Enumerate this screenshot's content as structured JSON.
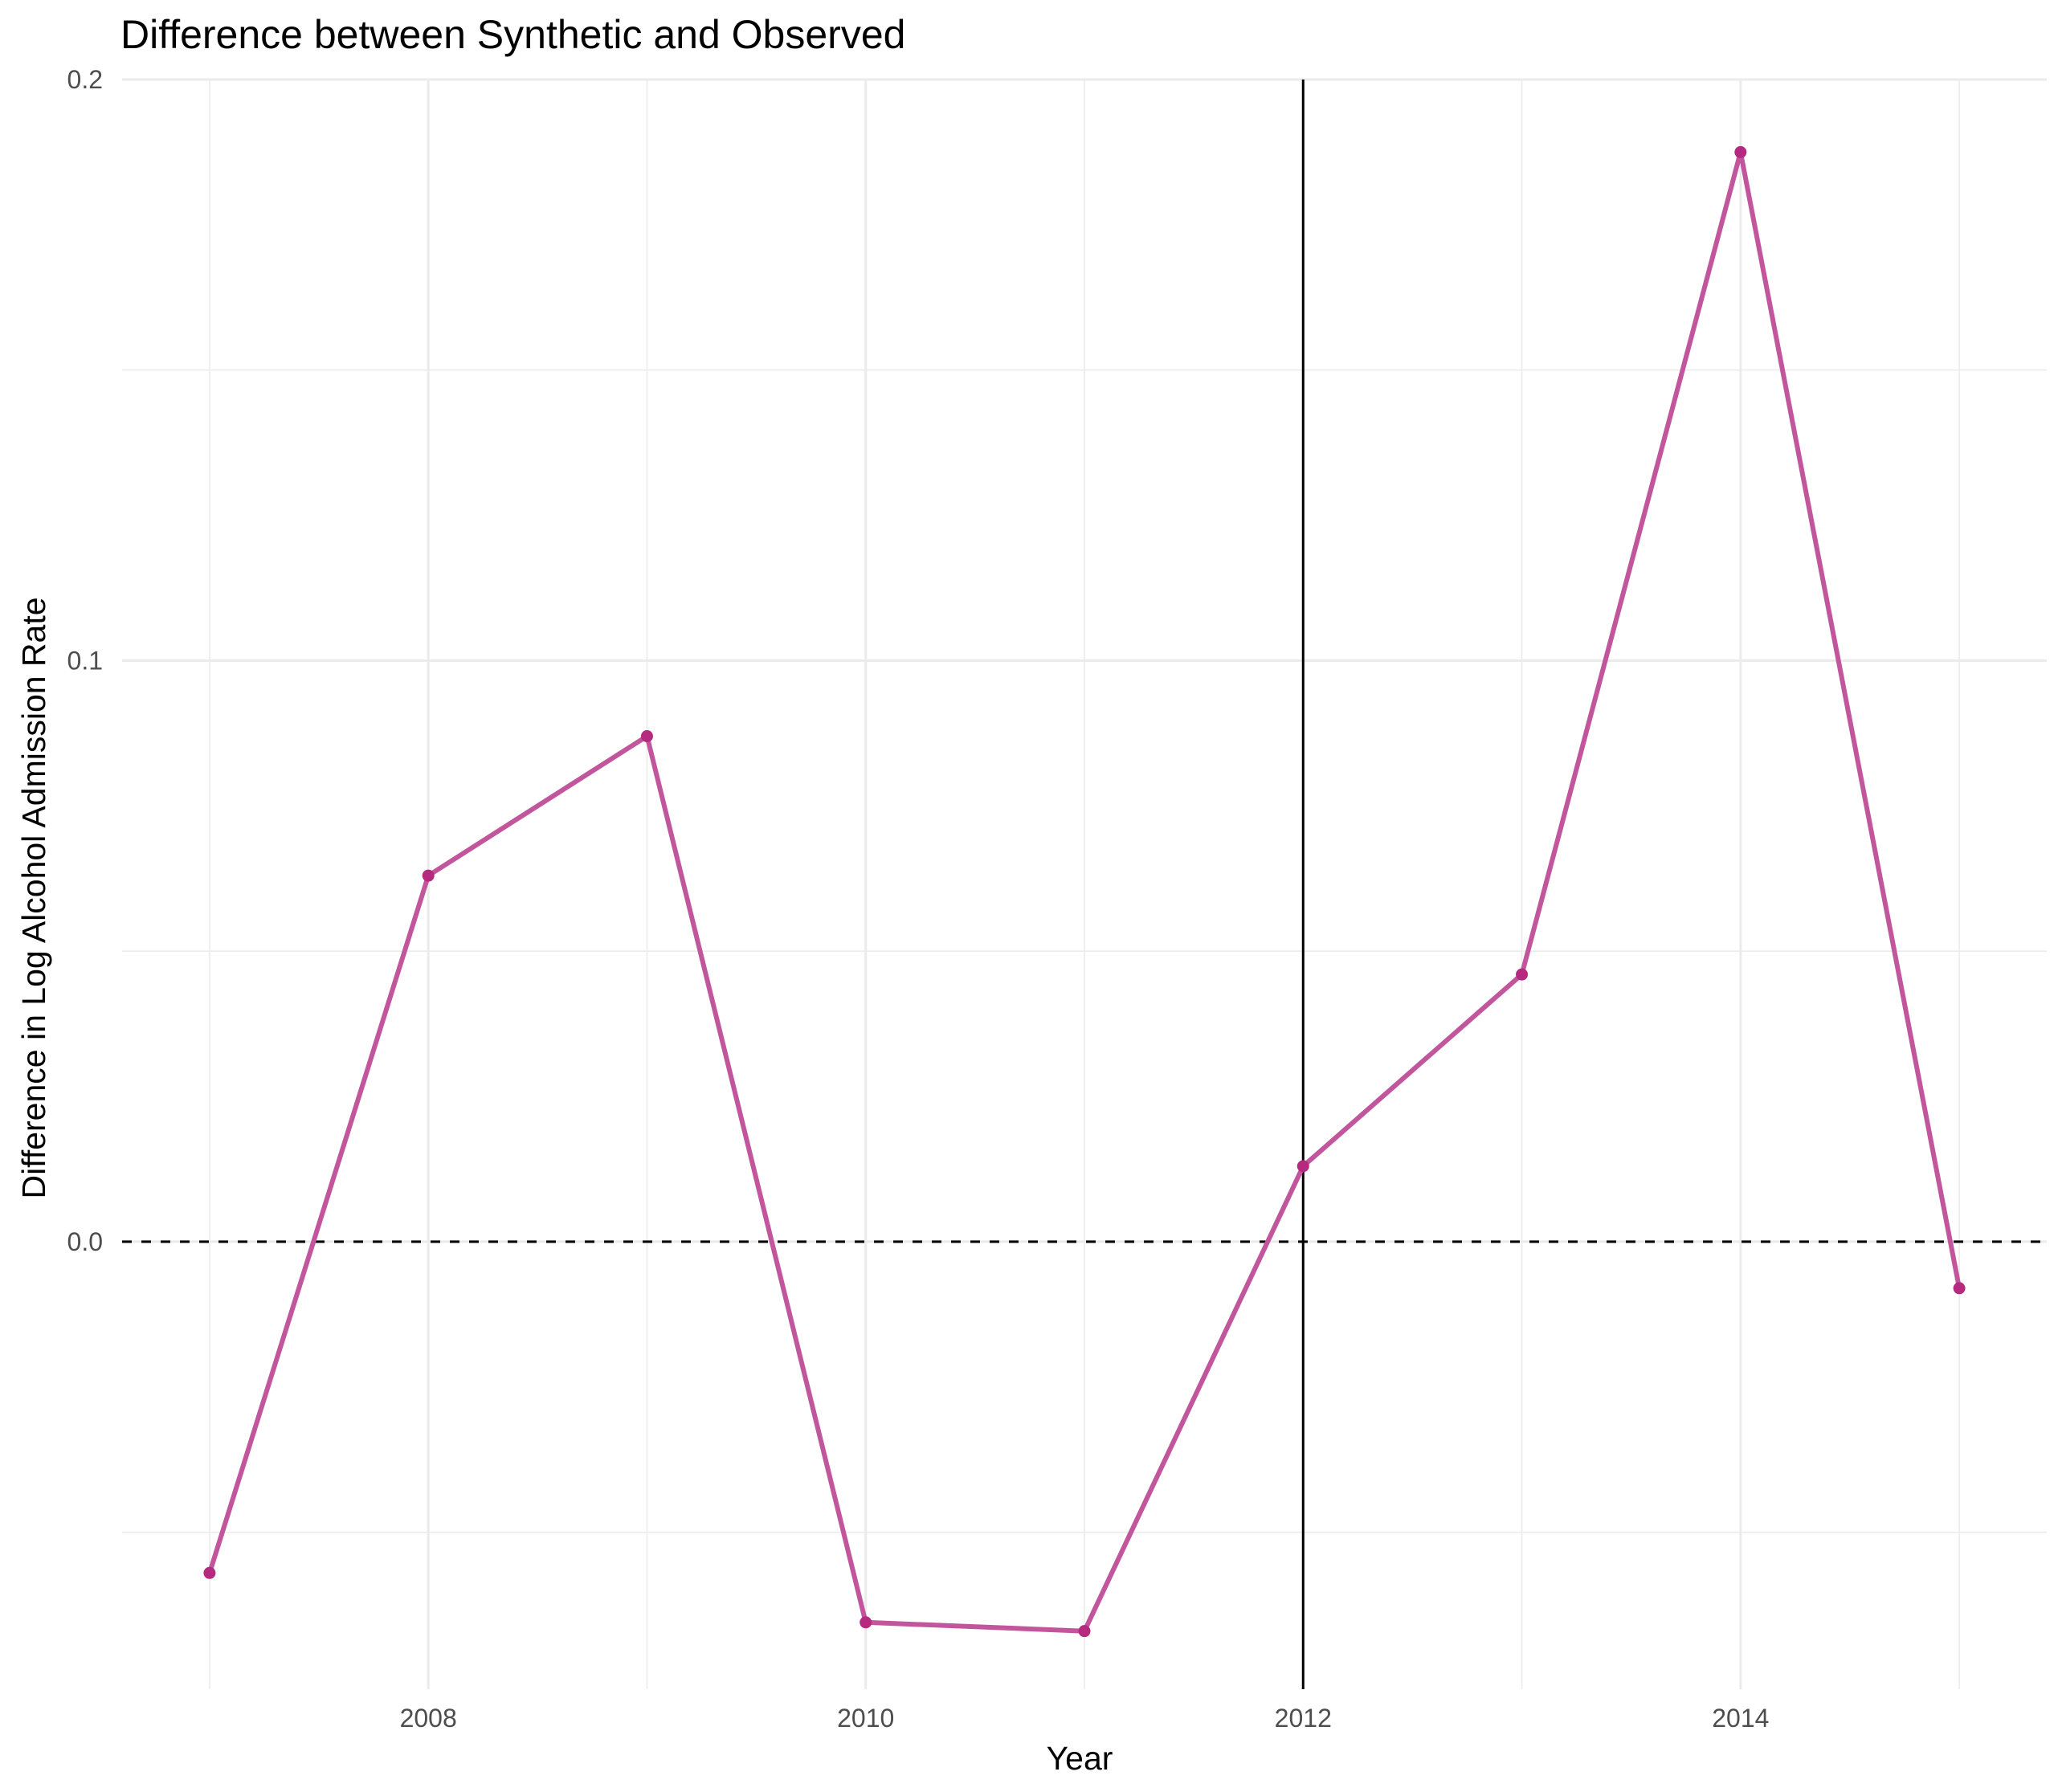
{
  "chart_data": {
    "type": "line",
    "title": "Difference between Synthetic and Observed",
    "xlabel": "Year",
    "ylabel": "Difference in Log Alcohol Admission Rate",
    "x": [
      2007,
      2008,
      2009,
      2010,
      2011,
      2012,
      2013,
      2014,
      2015
    ],
    "series": [
      {
        "values": [
          -0.057,
          0.063,
          0.087,
          -0.0655,
          -0.067,
          0.013,
          0.046,
          0.1875,
          -0.008
        ],
        "color": "#c2569c",
        "point_color": "#b5297f"
      }
    ],
    "xlim": [
      2006.6,
      2015.4
    ],
    "ylim": [
      -0.077,
      0.2
    ],
    "x_ticks": [
      2008,
      2010,
      2012,
      2014
    ],
    "x_tick_labels": [
      "2008",
      "2010",
      "2012",
      "2014"
    ],
    "y_ticks": [
      0.0,
      0.1,
      0.2
    ],
    "y_tick_labels": [
      "0.0",
      "0.1",
      "0.2"
    ],
    "y_minor_ticks": [
      -0.05,
      0.05,
      0.15
    ],
    "x_minor_ticks": [
      2007,
      2009,
      2011,
      2013,
      2015
    ],
    "reference_lines": {
      "vertical_x": 2012,
      "vertical_style": "solid",
      "horizontal_y": 0.0,
      "horizontal_style": "dashed"
    },
    "grid": true,
    "legend": "none"
  }
}
